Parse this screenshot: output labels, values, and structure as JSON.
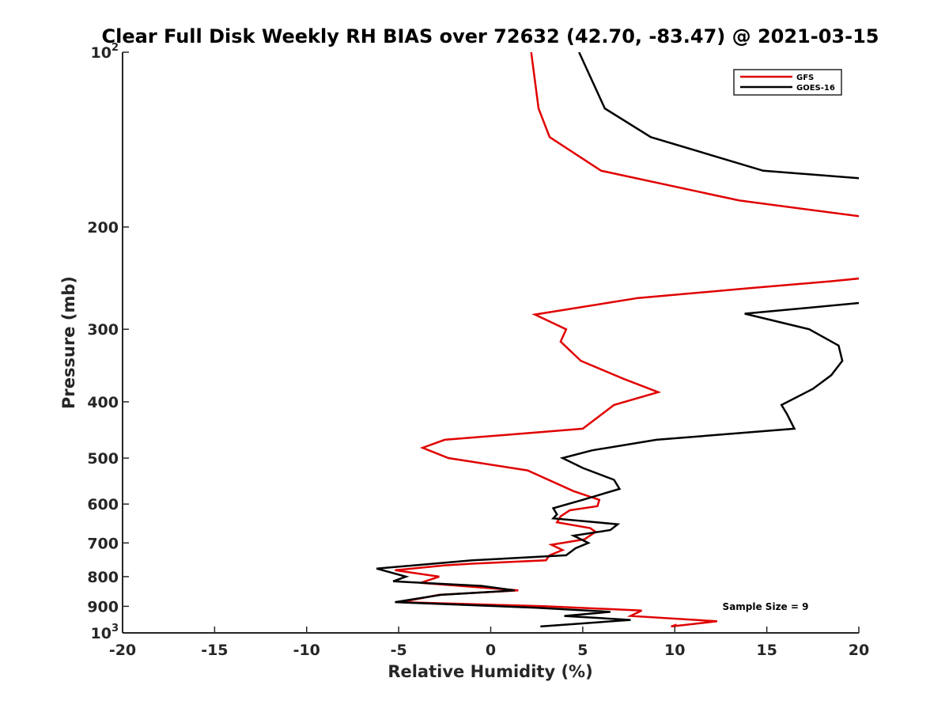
{
  "chart_data": {
    "type": "line",
    "title": "Clear Full Disk Weekly RH BIAS over 72632 (42.70, -83.47) @ 2021-03-15",
    "xlabel": "Relative Humidity (%)",
    "ylabel": "Pressure (mb)",
    "xlim": [
      -20,
      20
    ],
    "ylim": [
      100,
      1000
    ],
    "y_scale": "log",
    "y_reversed": true,
    "grid": false,
    "legend_position": "top-right",
    "x_ticks": [
      "-20",
      "-15",
      "-10",
      "-5",
      "0",
      "5",
      "10",
      "15",
      "20"
    ],
    "x_tick_values": [
      -20,
      -15,
      -10,
      -5,
      0,
      5,
      10,
      15,
      20
    ],
    "y_ticks": [
      {
        "value": 100,
        "base": "10",
        "exp": "2"
      },
      {
        "value": 200,
        "label": "200"
      },
      {
        "value": 300,
        "label": "300"
      },
      {
        "value": 400,
        "label": "400"
      },
      {
        "value": 500,
        "label": "500"
      },
      {
        "value": 600,
        "label": "600"
      },
      {
        "value": 700,
        "label": "700"
      },
      {
        "value": 800,
        "label": "800"
      },
      {
        "value": 900,
        "label": "900"
      },
      {
        "value": 1000,
        "base": "10",
        "exp": "3"
      }
    ],
    "annotation": "Sample Size = 9",
    "series": [
      {
        "name": "GFS",
        "color": "#e00000",
        "points": [
          [
            2.2,
            100
          ],
          [
            2.6,
            125
          ],
          [
            3.2,
            140
          ],
          [
            6.0,
            160
          ],
          [
            13.5,
            180
          ],
          [
            20.2,
            192
          ],
          [
            20.2,
            245
          ],
          [
            18.5,
            248
          ],
          [
            14.0,
            255
          ],
          [
            8.0,
            265
          ],
          [
            2.4,
            283
          ],
          [
            4.1,
            300
          ],
          [
            3.8,
            315
          ],
          [
            4.9,
            340
          ],
          [
            7.2,
            365
          ],
          [
            9.1,
            385
          ],
          [
            6.7,
            405
          ],
          [
            5.0,
            445
          ],
          [
            -2.5,
            465
          ],
          [
            -3.7,
            480
          ],
          [
            -2.3,
            500
          ],
          [
            2.0,
            525
          ],
          [
            4.5,
            570
          ],
          [
            5.9,
            590
          ],
          [
            5.8,
            605
          ],
          [
            4.3,
            615
          ],
          [
            3.8,
            630
          ],
          [
            3.6,
            645
          ],
          [
            5.4,
            660
          ],
          [
            5.7,
            670
          ],
          [
            5.1,
            690
          ],
          [
            3.3,
            705
          ],
          [
            3.9,
            720
          ],
          [
            3.2,
            735
          ],
          [
            3.0,
            750
          ],
          [
            -1.0,
            760
          ],
          [
            -2.5,
            765
          ],
          [
            -5.2,
            780
          ],
          [
            -2.8,
            800
          ],
          [
            -3.8,
            820
          ],
          [
            1.5,
            845
          ],
          [
            -2.8,
            860
          ],
          [
            -4.9,
            885
          ],
          [
            3.0,
            900
          ],
          [
            8.2,
            915
          ],
          [
            7.6,
            935
          ],
          [
            12.3,
            955
          ],
          [
            9.8,
            975
          ],
          [
            10.1,
            968
          ]
        ]
      },
      {
        "name": "GOES-16",
        "color": "#000000",
        "points": [
          [
            4.8,
            100
          ],
          [
            6.2,
            125
          ],
          [
            8.7,
            140
          ],
          [
            14.8,
            160
          ],
          [
            20.2,
            165
          ],
          [
            20.2,
            270
          ],
          [
            13.8,
            282
          ],
          [
            17.3,
            300
          ],
          [
            18.9,
            320
          ],
          [
            19.1,
            340
          ],
          [
            18.5,
            360
          ],
          [
            17.5,
            380
          ],
          [
            15.8,
            405
          ],
          [
            16.1,
            420
          ],
          [
            16.5,
            445
          ],
          [
            9.0,
            465
          ],
          [
            5.5,
            485
          ],
          [
            3.9,
            500
          ],
          [
            5.0,
            520
          ],
          [
            6.7,
            545
          ],
          [
            7.0,
            565
          ],
          [
            5.0,
            590
          ],
          [
            3.4,
            610
          ],
          [
            3.6,
            625
          ],
          [
            3.4,
            635
          ],
          [
            6.9,
            650
          ],
          [
            6.5,
            665
          ],
          [
            4.5,
            680
          ],
          [
            5.3,
            700
          ],
          [
            4.6,
            715
          ],
          [
            4.1,
            735
          ],
          [
            -1.0,
            750
          ],
          [
            -6.2,
            775
          ],
          [
            -4.6,
            800
          ],
          [
            -5.3,
            815
          ],
          [
            -0.5,
            830
          ],
          [
            1.3,
            845
          ],
          [
            -2.7,
            860
          ],
          [
            -5.2,
            885
          ],
          [
            2.5,
            905
          ],
          [
            6.5,
            920
          ],
          [
            4.0,
            935
          ],
          [
            7.6,
            950
          ],
          [
            2.7,
            975
          ]
        ]
      }
    ]
  }
}
